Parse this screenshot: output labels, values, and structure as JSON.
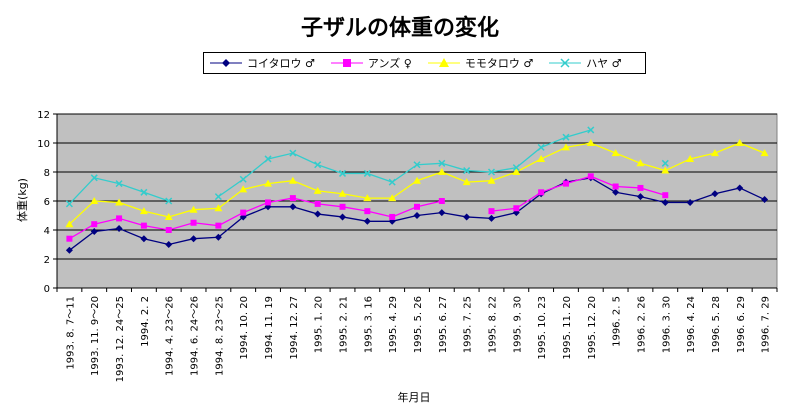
{
  "chart_data": {
    "type": "line",
    "title": "子ザルの体重の変化",
    "xlabel": "年月日",
    "ylabel": "体重(kg)",
    "ylim": [
      0,
      12
    ],
    "yticks": [
      0,
      2,
      4,
      6,
      8,
      10,
      12
    ],
    "grid": true,
    "legend_position": "top",
    "categories": [
      "1993. 8. 7～11",
      "1993. 11. 9～20",
      "1993. 12. 24～25",
      "1994. 2. 2",
      "1994. 4. 23～26",
      "1994. 6. 24～26",
      "1994. 8. 23～25",
      "1994. 10. 20",
      "1994. 11. 19",
      "1994. 12. 27",
      "1995. 1. 20",
      "1995. 2. 21",
      "1995. 3. 16",
      "1995. 4. 29",
      "1995. 5. 26",
      "1995. 6. 27",
      "1995. 7. 25",
      "1995. 8. 22",
      "1995. 9. 30",
      "1995. 10. 23",
      "1995. 11. 20",
      "1995. 12. 20",
      "1996. 2. 5",
      "1996. 2. 26",
      "1996. 3. 30",
      "1996. 4. 24",
      "1996. 5. 28",
      "1996. 6. 29",
      "1996. 7. 29"
    ],
    "series": [
      {
        "name": "コイタロウ ♂",
        "color": "#000080",
        "marker": "diamond",
        "values": [
          2.6,
          3.9,
          4.1,
          3.4,
          3.0,
          3.4,
          3.5,
          4.9,
          5.6,
          5.6,
          5.1,
          4.9,
          4.6,
          4.6,
          5.0,
          5.2,
          4.9,
          4.8,
          5.2,
          6.5,
          7.3,
          7.6,
          6.6,
          6.3,
          5.9,
          5.9,
          6.5,
          6.9,
          6.1
        ]
      },
      {
        "name": "アンズ ♀",
        "color": "#ff00ff",
        "marker": "square",
        "values": [
          3.4,
          4.4,
          4.8,
          4.3,
          4.0,
          4.5,
          4.3,
          5.2,
          5.9,
          6.2,
          5.8,
          5.6,
          5.3,
          4.9,
          5.6,
          6.0,
          null,
          5.3,
          5.5,
          6.6,
          7.2,
          7.7,
          7.0,
          6.9,
          6.4,
          null,
          null,
          null,
          null
        ]
      },
      {
        "name": "モモタロウ ♂",
        "color": "#ffff00",
        "marker": "triangle",
        "values": [
          4.4,
          6.0,
          5.9,
          5.3,
          4.9,
          5.4,
          5.5,
          6.8,
          7.2,
          7.4,
          6.7,
          6.5,
          6.2,
          6.2,
          7.4,
          8.0,
          7.3,
          7.4,
          8.0,
          8.9,
          9.7,
          10.0,
          9.3,
          8.6,
          8.1,
          8.9,
          9.3,
          10.0,
          9.3
        ]
      },
      {
        "name": "ハヤ ♂",
        "color": "#33cccc",
        "marker": "x",
        "values": [
          5.8,
          7.6,
          7.2,
          6.6,
          6.0,
          null,
          6.3,
          7.5,
          8.9,
          9.3,
          8.5,
          7.9,
          7.9,
          7.3,
          8.5,
          8.6,
          8.1,
          8.0,
          8.3,
          9.7,
          10.4,
          10.9,
          null,
          null,
          8.6,
          null,
          null,
          null,
          null
        ]
      }
    ]
  }
}
